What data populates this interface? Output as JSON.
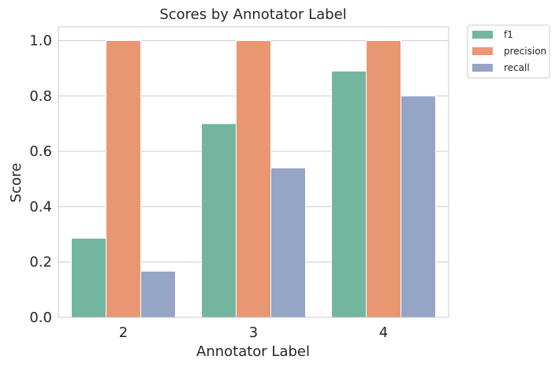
{
  "chart_data": {
    "type": "bar",
    "title": "Scores by Annotator Label",
    "xlabel": "Annotator Label",
    "ylabel": "Score",
    "categories": [
      "2",
      "3",
      "4"
    ],
    "ylim": [
      0,
      1.05
    ],
    "yticks": [
      0.0,
      0.2,
      0.4,
      0.6,
      0.8,
      1.0
    ],
    "ytick_labels": [
      "0.0",
      "0.2",
      "0.4",
      "0.6",
      "0.8",
      "1.0"
    ],
    "grid": true,
    "legend_position": "outside top-right",
    "series": [
      {
        "name": "f1",
        "color": "#72b69f",
        "values": [
          0.286,
          0.7,
          0.89
        ]
      },
      {
        "name": "precision",
        "color": "#e99672",
        "values": [
          1.0,
          1.0,
          1.0
        ]
      },
      {
        "name": "recall",
        "color": "#95a5c6",
        "values": [
          0.167,
          0.54,
          0.8
        ]
      }
    ]
  }
}
